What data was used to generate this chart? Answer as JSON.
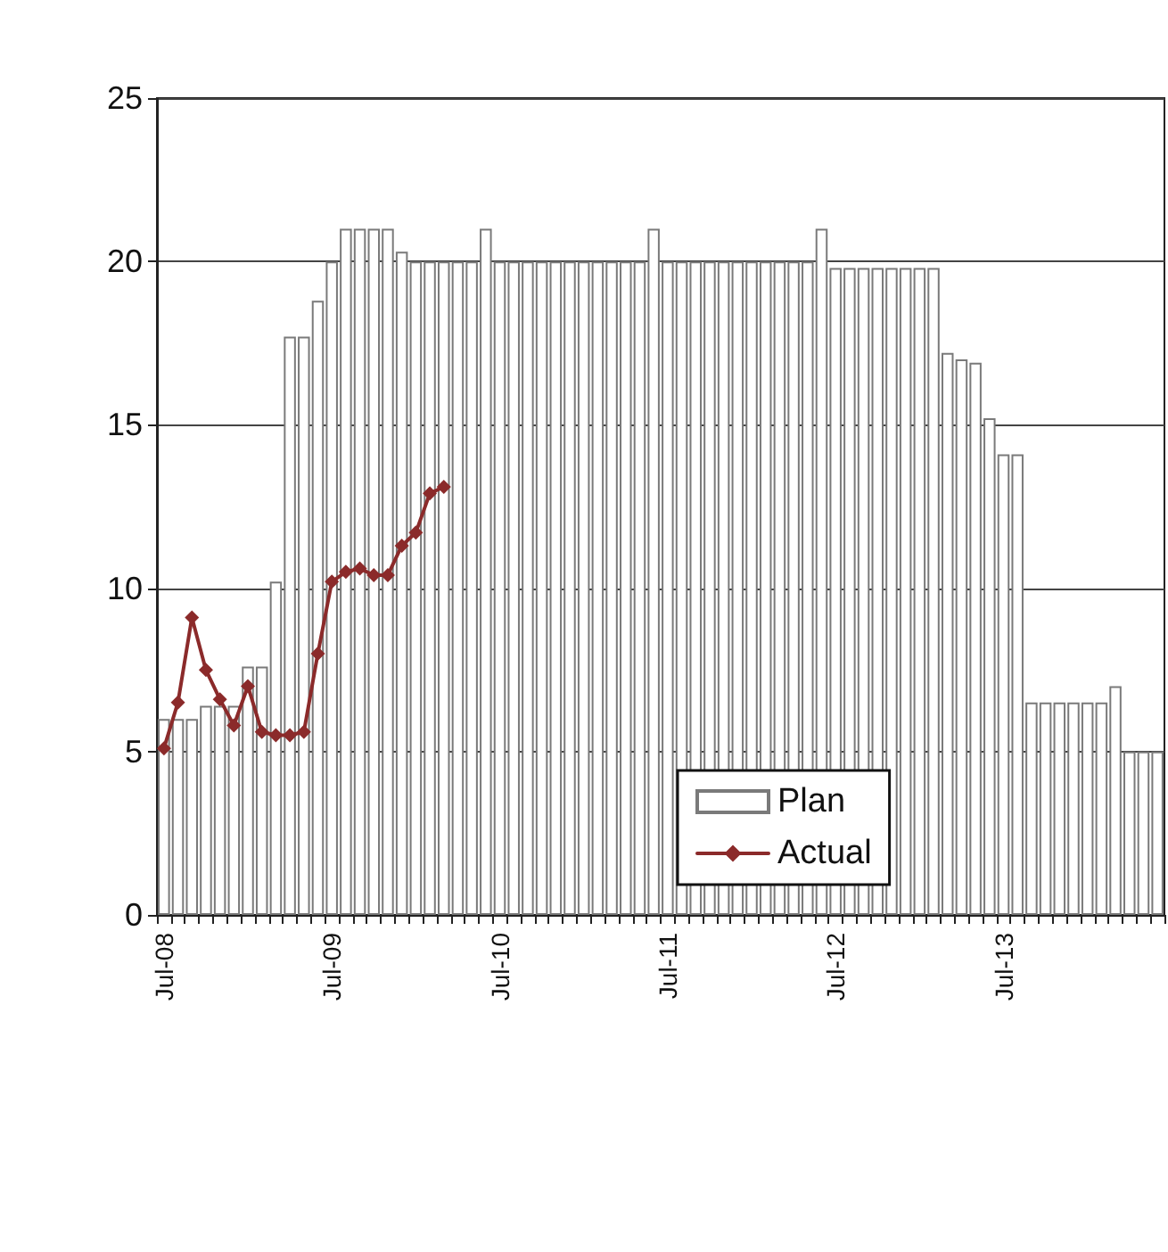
{
  "chart_data": {
    "type": "bar",
    "categories": [
      "Jul-08",
      null,
      null,
      null,
      null,
      null,
      null,
      null,
      null,
      null,
      null,
      null,
      "Jul-09",
      null,
      null,
      null,
      null,
      null,
      null,
      null,
      null,
      null,
      null,
      null,
      "Jul-10",
      null,
      null,
      null,
      null,
      null,
      null,
      null,
      null,
      null,
      null,
      null,
      "Jul-11",
      null,
      null,
      null,
      null,
      null,
      null,
      null,
      null,
      null,
      null,
      null,
      "Jul-12",
      null,
      null,
      null,
      null,
      null,
      null,
      null,
      null,
      null,
      null,
      null,
      "Jul-13",
      null,
      null,
      null,
      null,
      null,
      null,
      null,
      null,
      null,
      null,
      null
    ],
    "series": [
      {
        "name": "Plan",
        "color": "#ffffff",
        "values": [
          6.0,
          6.0,
          6.0,
          6.4,
          6.4,
          6.4,
          7.6,
          7.6,
          10.2,
          17.7,
          17.7,
          18.8,
          20,
          21,
          21,
          21,
          21,
          20.3,
          20,
          20,
          20,
          20,
          20,
          21,
          20,
          20,
          20,
          20,
          20,
          20,
          20,
          20,
          20,
          20,
          20,
          21,
          20,
          20,
          20,
          20,
          20,
          20,
          20,
          20,
          20,
          20,
          20,
          21,
          19.8,
          19.8,
          19.8,
          19.8,
          19.8,
          19.8,
          19.8,
          19.8,
          17.2,
          17.0,
          16.9,
          15.2,
          14.1,
          14.1,
          6.5,
          6.5,
          6.5,
          6.5,
          6.5,
          6.5,
          7.0,
          5.0,
          5.0,
          5.0
        ]
      },
      {
        "name": "Actual",
        "type": "line",
        "color": "#8b2a2a",
        "values": [
          5.1,
          6.5,
          9.1,
          7.5,
          6.6,
          5.8,
          7.0,
          5.6,
          5.5,
          5.5,
          5.6,
          8.0,
          10.2,
          10.5,
          10.6,
          10.4,
          10.4,
          11.3,
          11.7,
          12.9,
          13.1,
          null,
          null,
          null,
          null,
          null,
          null,
          null,
          null,
          null,
          null,
          null,
          null,
          null,
          null,
          null,
          null,
          null,
          null,
          null,
          null,
          null,
          null,
          null,
          null,
          null,
          null,
          null,
          null,
          null,
          null,
          null,
          null,
          null,
          null,
          null,
          null,
          null,
          null,
          null,
          null,
          null,
          null,
          null,
          null,
          null,
          null,
          null,
          null,
          null,
          null,
          null
        ]
      }
    ],
    "ylim": [
      0,
      25
    ],
    "yticks": [
      0,
      5,
      10,
      15,
      20,
      25
    ],
    "grid": "y",
    "legend": "bottom",
    "marker": "diamond",
    "line_style": "solid"
  }
}
